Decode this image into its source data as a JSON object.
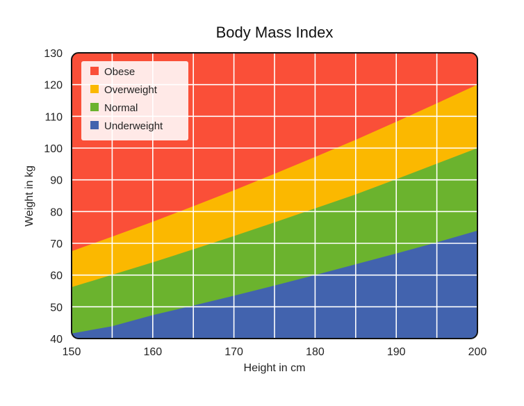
{
  "chart_data": {
    "type": "area",
    "title": "Body Mass Index",
    "xlabel": "Height in cm",
    "ylabel": "Weight in kg",
    "xlim": [
      150,
      200
    ],
    "ylim": [
      40,
      130
    ],
    "xticks": [
      150,
      160,
      170,
      180,
      190,
      200
    ],
    "yticks": [
      40,
      50,
      60,
      70,
      80,
      90,
      100,
      110,
      120,
      130
    ],
    "grid": true,
    "legend_position": "top-left",
    "x": [
      150,
      155,
      160,
      165,
      170,
      175,
      180,
      185,
      190,
      195,
      200
    ],
    "series": [
      {
        "name": "Underweight",
        "color": "#4263AE",
        "values": [
          41.6,
          43.9,
          47.4,
          50.4,
          53.5,
          56.7,
          60.0,
          63.4,
          66.8,
          70.3,
          74.0
        ]
      },
      {
        "name": "Normal",
        "color": "#6BB32E",
        "values": [
          56.2,
          60.1,
          64.0,
          68.1,
          72.3,
          76.6,
          81.0,
          85.4,
          90.2,
          95.1,
          100.0
        ]
      },
      {
        "name": "Overweight",
        "color": "#FBB800",
        "values": [
          67.5,
          72.1,
          76.8,
          81.7,
          86.7,
          91.9,
          97.2,
          102.6,
          108.3,
          114.1,
          120.0
        ]
      },
      {
        "name": "Obese",
        "color": "#FA4F38",
        "values": [
          130,
          130,
          130,
          130,
          130,
          130,
          130,
          130,
          130,
          130,
          130
        ]
      }
    ],
    "legend": [
      {
        "label": "Obese",
        "color": "#FA4F38"
      },
      {
        "label": "Overweight",
        "color": "#FBB800"
      },
      {
        "label": "Normal",
        "color": "#6BB32E"
      },
      {
        "label": "Underweight",
        "color": "#4263AE"
      }
    ]
  }
}
